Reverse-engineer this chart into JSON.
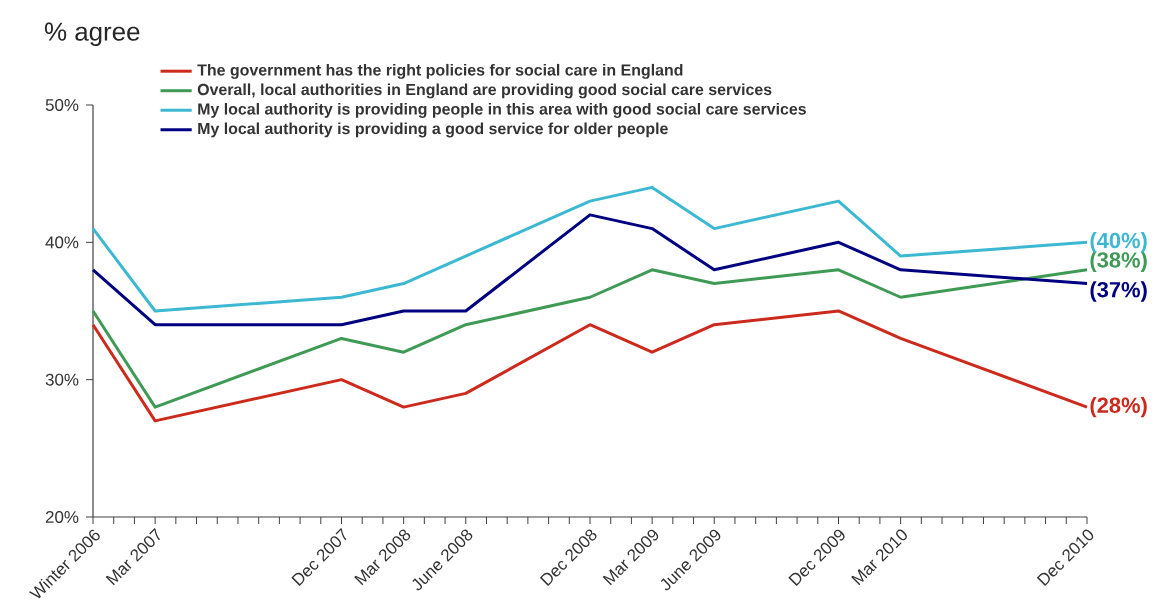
{
  "chart_data": {
    "type": "line",
    "ylabel": "% agree",
    "x": [
      "2006-12",
      "2007-03",
      "2007-12",
      "2008-03",
      "2008-06",
      "2008-12",
      "2009-03",
      "2009-06",
      "2009-12",
      "2010-03",
      "2010-12"
    ],
    "series": [
      {
        "name": "The government has the right policies for social care in England",
        "color": "#cc2a1c",
        "values": [
          34,
          27,
          30,
          28,
          29,
          34,
          32,
          34,
          35,
          33,
          28
        ],
        "value_labels": [
          null,
          null,
          null,
          null,
          null,
          null,
          null,
          null,
          null,
          null,
          "(28%)"
        ]
      },
      {
        "name": "Overall, local authorities in England are providing good social care services",
        "color": "#3f9a56",
        "values": [
          35,
          28,
          33,
          32,
          34,
          36,
          38,
          37,
          38,
          36,
          38
        ],
        "value_labels": [
          null,
          null,
          null,
          null,
          null,
          null,
          null,
          null,
          null,
          null,
          "(38%)"
        ]
      },
      {
        "name": "My local authority is providing people in this area with good social care services",
        "color": "#3cb8d2",
        "values": [
          41,
          35,
          36,
          37,
          39,
          43,
          44,
          41,
          43,
          39,
          40
        ],
        "value_labels": [
          null,
          null,
          null,
          null,
          null,
          null,
          null,
          null,
          null,
          null,
          "(40%)"
        ]
      },
      {
        "name": "My local authority is providing a good service for older people",
        "color": "#000080",
        "values": [
          38,
          34,
          34,
          35,
          35,
          42,
          41,
          38,
          40,
          38,
          37
        ],
        "value_labels": [
          null,
          null,
          null,
          null,
          null,
          null,
          null,
          null,
          null,
          null,
          "(37%)"
        ]
      }
    ],
    "xlim": [
      "2006-12",
      "2010-12"
    ],
    "xticks": [
      {
        "value": "2006-12",
        "label": "Winter 2006"
      },
      {
        "value": "2007-01",
        "label": null
      },
      {
        "value": "2007-02",
        "label": null
      },
      {
        "value": "2007-03",
        "label": "Mar 2007"
      },
      {
        "value": "2007-04",
        "label": null
      },
      {
        "value": "2007-05",
        "label": null
      },
      {
        "value": "2007-06",
        "label": null
      },
      {
        "value": "2007-07",
        "label": null
      },
      {
        "value": "2007-08",
        "label": null
      },
      {
        "value": "2007-09",
        "label": null
      },
      {
        "value": "2007-10",
        "label": null
      },
      {
        "value": "2007-11",
        "label": null
      },
      {
        "value": "2007-12",
        "label": "Dec 2007"
      },
      {
        "value": "2008-01",
        "label": null
      },
      {
        "value": "2008-02",
        "label": null
      },
      {
        "value": "2008-03",
        "label": "Mar 2008"
      },
      {
        "value": "2008-04",
        "label": null
      },
      {
        "value": "2008-05",
        "label": null
      },
      {
        "value": "2008-06",
        "label": "June 2008"
      },
      {
        "value": "2008-07",
        "label": null
      },
      {
        "value": "2008-08",
        "label": null
      },
      {
        "value": "2008-09",
        "label": null
      },
      {
        "value": "2008-10",
        "label": null
      },
      {
        "value": "2008-11",
        "label": null
      },
      {
        "value": "2008-12",
        "label": "Dec 2008"
      },
      {
        "value": "2009-01",
        "label": null
      },
      {
        "value": "2009-02",
        "label": null
      },
      {
        "value": "2009-03",
        "label": "Mar 2009"
      },
      {
        "value": "2009-04",
        "label": null
      },
      {
        "value": "2009-05",
        "label": null
      },
      {
        "value": "2009-06",
        "label": "June 2009"
      },
      {
        "value": "2009-07",
        "label": null
      },
      {
        "value": "2009-08",
        "label": null
      },
      {
        "value": "2009-09",
        "label": null
      },
      {
        "value": "2009-10",
        "label": null
      },
      {
        "value": "2009-11",
        "label": null
      },
      {
        "value": "2009-12",
        "label": "Dec 2009"
      },
      {
        "value": "2010-01",
        "label": null
      },
      {
        "value": "2010-02",
        "label": null
      },
      {
        "value": "2010-03",
        "label": "Mar 2010"
      },
      {
        "value": "2010-04",
        "label": null
      },
      {
        "value": "2010-05",
        "label": null
      },
      {
        "value": "2010-06",
        "label": null
      },
      {
        "value": "2010-07",
        "label": null
      },
      {
        "value": "2010-08",
        "label": null
      },
      {
        "value": "2010-09",
        "label": null
      },
      {
        "value": "2010-10",
        "label": null
      },
      {
        "value": "2010-11",
        "label": null
      },
      {
        "value": "2010-12",
        "label": "Dec 2010"
      }
    ],
    "ylim": [
      20,
      50
    ],
    "yticks": [
      {
        "value": 20,
        "label": "20%"
      },
      {
        "value": 30,
        "label": "30%"
      },
      {
        "value": 40,
        "label": "40%"
      },
      {
        "value": 50,
        "label": "50%"
      }
    ],
    "grid": false,
    "legend": "top",
    "marker": "none",
    "line_style": "solid"
  }
}
